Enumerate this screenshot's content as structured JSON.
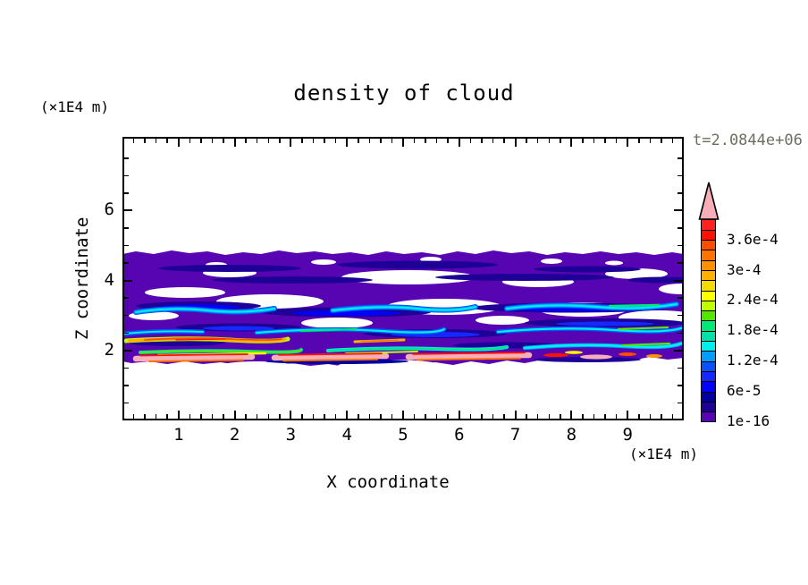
{
  "header": {
    "title": "density of cloud",
    "timestamp": "t=2.0844e+06"
  },
  "axes": {
    "x": {
      "label": "X coordinate",
      "unit": "(×1E4 m)",
      "tick_labels": [
        "1",
        "2",
        "3",
        "4",
        "5",
        "6",
        "7",
        "8",
        "9"
      ],
      "range": [
        0,
        10
      ],
      "major_step": 1,
      "minor_step": 0.2
    },
    "z": {
      "label": "Z coordinate",
      "unit": "(×1E4 m)",
      "tick_labels": [
        "2",
        "4",
        "6"
      ],
      "range": [
        0,
        8.1
      ],
      "major_step": 2,
      "minor_step": 0.5
    }
  },
  "colorbar": {
    "labels_bottom_to_top": [
      "1e-16",
      "6e-5",
      "1.2e-4",
      "1.8e-4",
      "2.4e-4",
      "3e-4",
      "3.6e-4"
    ],
    "cells": 20,
    "label_every_n_cells": 3,
    "palette_bottom_to_top": [
      "#5705B2",
      "#1E0096",
      "#0000A0",
      "#0000FF",
      "#1428FF",
      "#0A50FF",
      "#009CFF",
      "#00EEEE",
      "#00E0A8",
      "#00E878",
      "#55E600",
      "#BFFF00",
      "#FFFF00",
      "#F5DC00",
      "#FFB000",
      "#FF9000",
      "#FF7400",
      "#FF4D00",
      "#FF1000",
      "#FF2020"
    ],
    "overflow_arrow_color": "#F7AEB9"
  },
  "colors": {
    "axis": "#000000",
    "timestamp_text": "#6E6E60",
    "field_background": "#5705B2",
    "overflow_pink": "#F7AEB9"
  },
  "chart_data": {
    "type": "heatmap",
    "title": "density of cloud",
    "xlabel": "X coordinate",
    "ylabel": "Z coordinate",
    "x_unit": "(×1E4 m)",
    "z_unit": "(×1E4 m)",
    "time_annotation": "t=2.0844e+06",
    "x_range_1e4_m": [
      0,
      10
    ],
    "z_range_1e4_m": [
      0,
      8.1
    ],
    "contour_levels": [
      "1e-16",
      "6e-5",
      "1.2e-4",
      "1.8e-4",
      "2.4e-4",
      "3e-4",
      "3.6e-4"
    ],
    "level_spacing": "2e-5 per colorbar cell, labels every 6e-5, pink arrow = overflow above 4e-4",
    "legend_position": "right vertical colorbar with overflow arrow",
    "grid": false,
    "bands": [
      {
        "z_range_1e4_m": [
          4.0,
          5.0
        ],
        "value_range": "1e-16 to ~4e-5",
        "description": "continuous deep-violet low-density cloud deck with small white gaps and darker navy filaments"
      },
      {
        "z_range_1e4_m": [
          2.7,
          4.0
        ],
        "value_range": "1e-16 to ~1.4e-4",
        "description": "broken violet layers, many white holes, elongated navy/blue filaments, wavy cyan streaks near z≈3.2"
      },
      {
        "z_range_1e4_m": [
          2.1,
          2.7
        ],
        "value_range": "up to ~2e-4",
        "description": "violet layer threaded with cyan-green filaments and a short yellow/orange/red filament on the left"
      },
      {
        "z_range_1e4_m": [
          1.6,
          2.1
        ],
        "value_range": "up to >4e-4 (overflow)",
        "description": "thin high-density strata: green/yellow/orange/red filaments and a long pink overflow band near z≈1.9 spanning x≈0–6"
      }
    ]
  }
}
